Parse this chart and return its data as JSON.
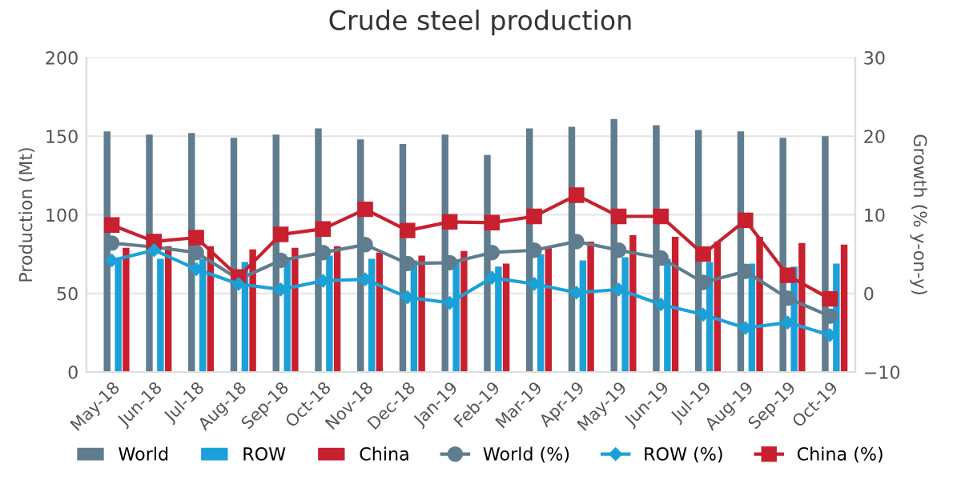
{
  "chart_data": {
    "type": "bar",
    "title": "Crude steel production",
    "ylabel": "Production (Mt)",
    "y2label": "Growth (% y-on-y)",
    "categories": [
      "May-18",
      "Jun-18",
      "Jul-18",
      "Aug-18",
      "Sep-18",
      "Oct-18",
      "Nov-18",
      "Dec-18",
      "Jan-19",
      "Feb-19",
      "Mar-19",
      "Apr-19",
      "May-19",
      "Jun-19",
      "Jul-19",
      "Aug-19",
      "Sep-19",
      "Oct-19"
    ],
    "series": [
      {
        "name": "World",
        "color": "#5f7d8e",
        "values": [
          153,
          151,
          152,
          149,
          151,
          155,
          148,
          145,
          151,
          138,
          155,
          156,
          161,
          157,
          154,
          153,
          149,
          150
        ]
      },
      {
        "name": "ROW",
        "color": "#1ba1d8",
        "values": [
          72,
          72,
          72,
          70,
          72,
          74,
          72,
          71,
          71,
          67,
          75,
          71,
          73,
          72,
          70,
          69,
          67,
          69
        ]
      },
      {
        "name": "China",
        "color": "#c8202f",
        "values": [
          79,
          80,
          80,
          78,
          79,
          80,
          76,
          74,
          77,
          69,
          79,
          83,
          87,
          86,
          83,
          86,
          82,
          81
        ]
      },
      {
        "name": "World (%)",
        "type": "line",
        "axis": "y2",
        "marker": "circle",
        "color": "#5f7d8e",
        "values": [
          6.4,
          5.9,
          5.2,
          1.8,
          4.2,
          5.2,
          6.2,
          3.8,
          3.9,
          5.2,
          5.5,
          6.6,
          5.5,
          4.5,
          1.4,
          2.8,
          -0.6,
          -2.9
        ]
      },
      {
        "name": "ROW (%)",
        "type": "line",
        "axis": "y2",
        "marker": "diamond",
        "color": "#1ba1d8",
        "values": [
          4.2,
          5.5,
          3.1,
          1.2,
          0.5,
          1.6,
          1.8,
          -0.5,
          -1.2,
          2.0,
          1.2,
          0.1,
          0.5,
          -1.4,
          -2.7,
          -4.4,
          -3.7,
          -5.3
        ]
      },
      {
        "name": "China (%)",
        "type": "line",
        "axis": "y2",
        "marker": "square",
        "color": "#c8202f",
        "values": [
          8.7,
          6.6,
          7.1,
          2.1,
          7.5,
          8.2,
          10.7,
          8.0,
          9.1,
          9.0,
          9.8,
          12.5,
          9.8,
          9.8,
          5.0,
          9.3,
          2.3,
          -0.7
        ]
      }
    ],
    "ylim": [
      0,
      200
    ],
    "yticks": [
      0,
      50,
      100,
      150,
      200
    ],
    "y2lim": [
      -10,
      30
    ],
    "y2ticks": [
      {
        "value": -10,
        "label": "−10"
      },
      0,
      10,
      20,
      30
    ],
    "grid": "y",
    "legend": "bottom"
  }
}
